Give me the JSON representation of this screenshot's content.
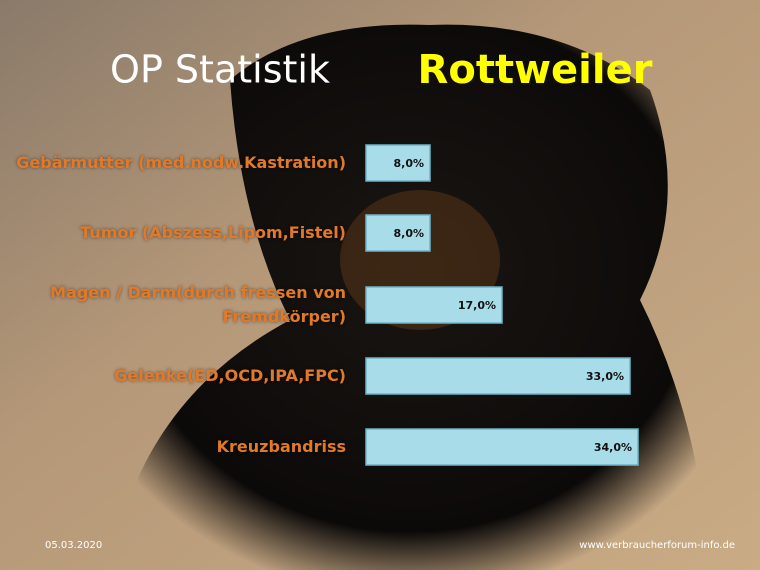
{
  "chart_data": {
    "type": "bar",
    "orientation": "horizontal",
    "title": "OP Statistik",
    "subtitle": "Rottweiler",
    "categories": [
      "Gebärmutter (med.nodw.Kastration)",
      "Tumor (Abszess,Lipom,Fistel)",
      "Magen / Darm(durch fressen von Fremdkörper)",
      "Gelenke(ED,OCD,IPA,FPC)",
      "Kreuzbandriss"
    ],
    "values": [
      8,
      8,
      17,
      33,
      34
    ],
    "value_labels": [
      "8,0%",
      "8,0%",
      "17,0%",
      "33,0%",
      "34,0%"
    ],
    "color": "#a9dce9",
    "date": "05.03.2020",
    "source": "www.verbraucherforum-info.de"
  }
}
